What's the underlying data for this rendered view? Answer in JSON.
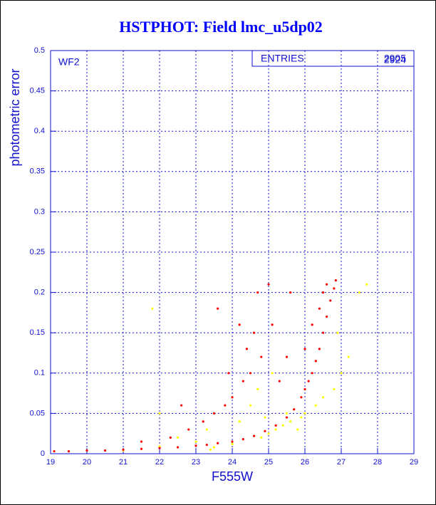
{
  "chart_data": {
    "type": "scatter",
    "title": "HSTPHOT: Field lmc_u5dp02",
    "x_label": "F555W",
    "y_label": "photometric error",
    "annotation": "WF2",
    "stats_label": "ENTRIES",
    "stats_values": [
      "2905",
      "2924"
    ],
    "xlim": [
      19,
      29
    ],
    "xticks": [
      19,
      20,
      21,
      22,
      23,
      24,
      25,
      26,
      27,
      28,
      29
    ],
    "ylim": [
      0,
      0.5
    ],
    "yticks": [
      0,
      0.05,
      0.1,
      0.15,
      0.2,
      0.25,
      0.3,
      0.35,
      0.4,
      0.45,
      0.5
    ],
    "grid": true,
    "series": [
      {
        "color": "#ff0000",
        "x": [
          19.1,
          19.5,
          20,
          20.5,
          21,
          21.5,
          22,
          22.5,
          23,
          23.3,
          23.6,
          24,
          24.3,
          24.6,
          24.9,
          25.2,
          25.5,
          25.7,
          25.9,
          26,
          26.1,
          26.2,
          26.3,
          26.4,
          26.5,
          26.6,
          26.7,
          26.8,
          26.85,
          26.5,
          26.6,
          26.4,
          26.2,
          26.0,
          22.3,
          22.8,
          23.2,
          23.5,
          23.8,
          24,
          24.3,
          24.5,
          24.8,
          24.2,
          24.7,
          25,
          23.6,
          24.6,
          25.3,
          25.5,
          21.5,
          22.6,
          23.9,
          25.1,
          25.6,
          24.4
        ],
        "y": [
          0.003,
          0.003,
          0.004,
          0.004,
          0.005,
          0.006,
          0.007,
          0.008,
          0.01,
          0.011,
          0.013,
          0.015,
          0.018,
          0.022,
          0.028,
          0.035,
          0.045,
          0.055,
          0.07,
          0.08,
          0.09,
          0.1,
          0.115,
          0.13,
          0.15,
          0.17,
          0.19,
          0.205,
          0.215,
          0.2,
          0.21,
          0.18,
          0.16,
          0.13,
          0.02,
          0.03,
          0.04,
          0.05,
          0.06,
          0.07,
          0.09,
          0.1,
          0.12,
          0.16,
          0.2,
          0.21,
          0.18,
          0.15,
          0.09,
          0.12,
          0.015,
          0.06,
          0.1,
          0.16,
          0.2,
          0.13
        ]
      },
      {
        "color": "#ffff00",
        "x": [
          21,
          22,
          22.5,
          23,
          23.3,
          23.5,
          24,
          24.2,
          24.5,
          24.8,
          25,
          25.2,
          25.4,
          25.6,
          25.8,
          25.5,
          25.9,
          26,
          26.3,
          26.5,
          26.8,
          27,
          27.2,
          27.5,
          27.7,
          26.9,
          24.7,
          25.1,
          22,
          21.8,
          23.4,
          24.9
        ],
        "y": [
          0.004,
          0.009,
          0.02,
          0.015,
          0.03,
          0.008,
          0.012,
          0.04,
          0.06,
          0.02,
          0.025,
          0.03,
          0.035,
          0.04,
          0.03,
          0.05,
          0.045,
          0.05,
          0.06,
          0.07,
          0.08,
          0.1,
          0.12,
          0.2,
          0.21,
          0.15,
          0.08,
          0.1,
          0.05,
          0.18,
          0.005,
          0.045
        ]
      }
    ]
  }
}
